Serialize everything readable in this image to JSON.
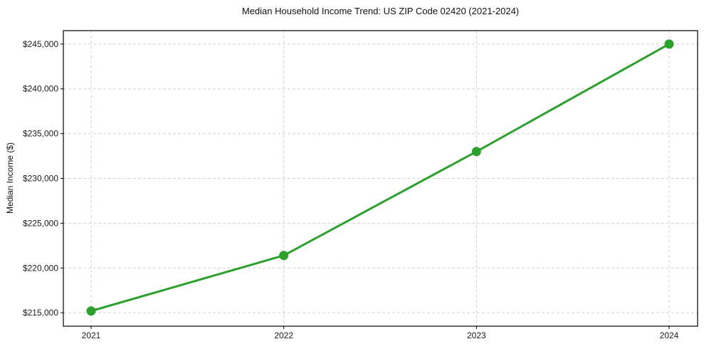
{
  "chart_data": {
    "type": "line",
    "title": "Median Household Income Trend: US ZIP Code 02420 (2021-2024)",
    "xlabel": "",
    "ylabel": "Median Income ($)",
    "categories": [
      "2021",
      "2022",
      "2023",
      "2024"
    ],
    "series": [
      {
        "name": "Median Household Income",
        "values": [
          215200,
          221400,
          233000,
          245000
        ],
        "color": "#2ca02c"
      }
    ],
    "yticks": [
      215000,
      220000,
      225000,
      230000,
      235000,
      240000,
      245000
    ],
    "ytick_labels": [
      "$215,000",
      "$220,000",
      "$225,000",
      "$230,000",
      "$235,000",
      "$240,000",
      "$245,000"
    ],
    "ylim": [
      213500,
      246500
    ],
    "grid": true,
    "grid_style": "dashed",
    "legend": "none",
    "colors": {
      "line": "#2ca02c",
      "marker": "#2ca02c",
      "grid": "#d0d0d0",
      "axis": "#000000",
      "text": "#1a1a1a",
      "background": "#ffffff"
    }
  }
}
